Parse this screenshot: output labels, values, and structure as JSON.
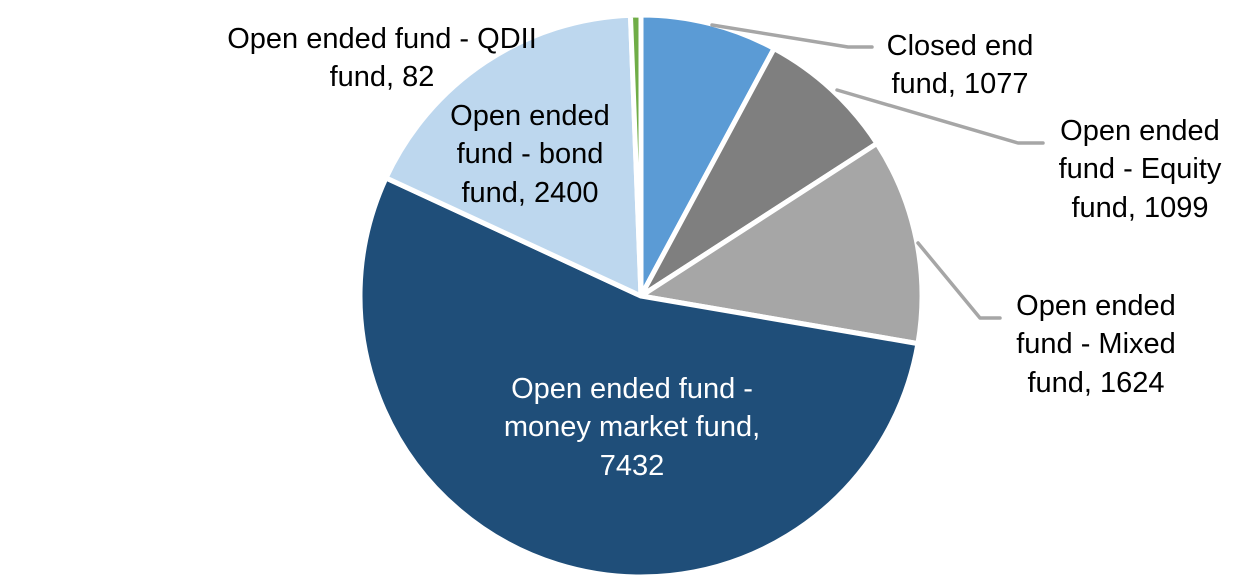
{
  "chart_data": {
    "type": "pie",
    "title": "",
    "legend": "none",
    "start_angle_deg": 0,
    "direction": "clockwise",
    "total": 13714,
    "slices": [
      {
        "label": "Closed end fund",
        "value": 1077,
        "color": "#5B9BD5"
      },
      {
        "label": "Open ended fund - Equity fund",
        "value": 1099,
        "color": "#7F7F7F"
      },
      {
        "label": "Open ended fund - Mixed fund",
        "value": 1624,
        "color": "#A6A6A6"
      },
      {
        "label": "Open ended fund - money market fund",
        "value": 7432,
        "color": "#1F4E79"
      },
      {
        "label": "Open ended fund - bond fund",
        "value": 2400,
        "color": "#BDD7EE"
      },
      {
        "label": "Open ended fund - QDII fund",
        "value": 82,
        "color": "#70AD47"
      }
    ],
    "data_label_style": "category name + value; outside labels with gray leader lines on the right, inside white label on largest slice"
  },
  "callouts": {
    "qdii": {
      "text": "Open ended fund - QDII fund, 82"
    },
    "bond": {
      "text": "Open ended fund - bond fund, 2400"
    },
    "money_market": {
      "text": "Open ended fund - money market fund, 7432"
    },
    "closed_end": {
      "text": "Closed end fund, 1077"
    },
    "equity": {
      "text": "Open ended fund - Equity fund, 1099"
    },
    "mixed": {
      "text": "Open ended fund - Mixed fund, 1624"
    }
  },
  "colors": {
    "background": "#FFFFFF",
    "leader_line": "#A6A6A6",
    "outside_label_text": "#000000",
    "inside_label_text": "#FFFFFF",
    "slice_border": "#FFFFFF"
  }
}
